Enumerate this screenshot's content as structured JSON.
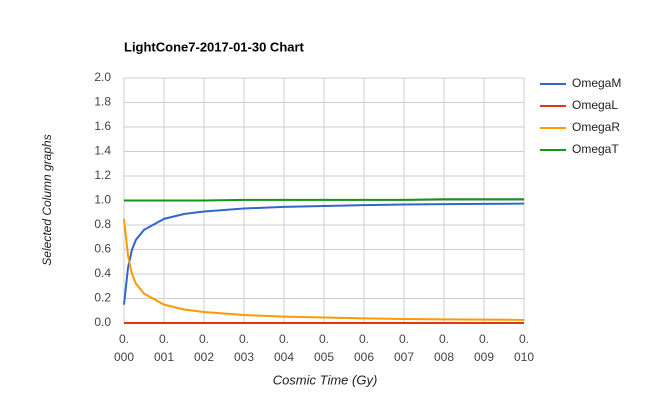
{
  "chart_data": {
    "type": "line",
    "title": "LightCone7-2017-01-30 Chart",
    "x_label": "Cosmic Time (Gy)",
    "y_label": "Selected Column graphs",
    "x": [
      0,
      0.0001,
      0.0002,
      0.0003,
      0.0005,
      0.001,
      0.0015,
      0.002,
      0.003,
      0.004,
      0.005,
      0.006,
      0.007,
      0.008,
      0.009,
      0.01
    ],
    "series": [
      {
        "name": "OmegaM",
        "color": "#3366cc",
        "values": [
          0.15,
          0.45,
          0.6,
          0.68,
          0.76,
          0.85,
          0.89,
          0.91,
          0.935,
          0.948,
          0.955,
          0.962,
          0.967,
          0.97,
          0.972,
          0.975
        ]
      },
      {
        "name": "OmegaL",
        "color": "#dc3912",
        "values": [
          0,
          0,
          0,
          0,
          0,
          0,
          0,
          0,
          0,
          0,
          0,
          0,
          0,
          0,
          0,
          0
        ]
      },
      {
        "name": "OmegaR",
        "color": "#ff9900",
        "values": [
          0.85,
          0.55,
          0.4,
          0.32,
          0.24,
          0.15,
          0.11,
          0.09,
          0.065,
          0.052,
          0.045,
          0.038,
          0.033,
          0.03,
          0.028,
          0.025
        ]
      },
      {
        "name": "OmegaT",
        "color": "#109618",
        "values": [
          1.0,
          1.0,
          1.0,
          1.0,
          1.0,
          1.0,
          1.0,
          1.0,
          1.005,
          1.005,
          1.005,
          1.005,
          1.005,
          1.01,
          1.01,
          1.01
        ]
      }
    ],
    "xlim": [
      0,
      0.01
    ],
    "xticks": [
      {
        "value": 0,
        "label": "0.000"
      },
      {
        "value": 0.001,
        "label": "0.001"
      },
      {
        "value": 0.002,
        "label": "0.002"
      },
      {
        "value": 0.003,
        "label": "0.003"
      },
      {
        "value": 0.004,
        "label": "0.004"
      },
      {
        "value": 0.005,
        "label": "0.005"
      },
      {
        "value": 0.006,
        "label": "0.006"
      },
      {
        "value": 0.007,
        "label": "0.007"
      },
      {
        "value": 0.008,
        "label": "0.008"
      },
      {
        "value": 0.009,
        "label": "0.009"
      },
      {
        "value": 0.01,
        "label": "0.010"
      }
    ],
    "ylim": [
      0,
      2
    ],
    "yticks": [
      {
        "value": 0,
        "label": "0.0"
      },
      0.2,
      0.4,
      0.6,
      0.8,
      {
        "value": 1,
        "label": "1.0"
      },
      1.2,
      1.4,
      1.6,
      1.8,
      {
        "value": 2,
        "label": "2.0"
      }
    ],
    "grid": true,
    "legend": "right"
  }
}
